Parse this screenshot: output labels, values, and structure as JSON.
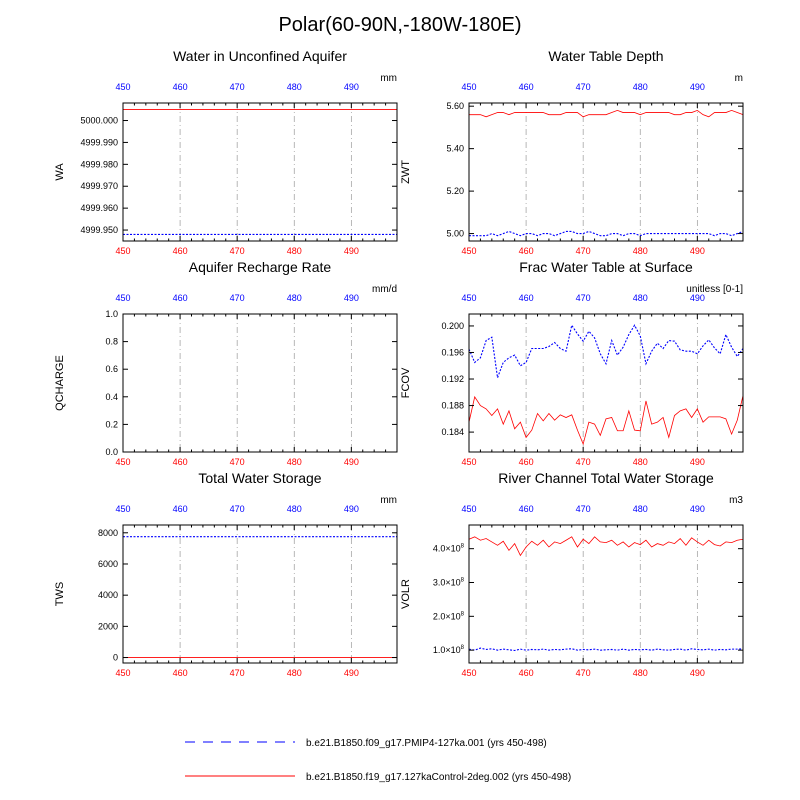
{
  "figure_title": "Polar(60-90N,-180W-180E)",
  "colors": {
    "series1": "#0000ff",
    "series2": "#ff0000",
    "top_axis": "#0000ff",
    "bottom_axis": "#ff0000",
    "grid": "#999999"
  },
  "legend": [
    {
      "name": "b.e21.B1850.f09_g17.PMIP4-127ka.001 (yrs 450-498)",
      "style": "dashed",
      "color": "#0000ff"
    },
    {
      "name": "b.e21.B1850.f19_g17.127kaControl-2deg.002 (yrs 450-498)",
      "style": "solid",
      "color": "#ff0000"
    }
  ],
  "chart_data": [
    {
      "type": "line",
      "title": "Water in Unconfined Aquifer",
      "ylabel": "WA",
      "units": "mm",
      "xlim": [
        450,
        498
      ],
      "ylim": [
        4999.945,
        5000.008
      ],
      "xticks": [
        450,
        460,
        470,
        480,
        490
      ],
      "yticks": [
        4999.95,
        4999.96,
        4999.97,
        4999.98,
        4999.99,
        5000.0
      ],
      "ytick_labels": [
        "4999.950",
        "4999.960",
        "4999.970",
        "4999.980",
        "4999.990",
        "5000.000"
      ],
      "series": [
        {
          "name": "b.e21.B1850.f09_g17.PMIP4-127ka.001 (yrs 450-498)",
          "style": "dashed",
          "color": "#0000ff",
          "values": [
            4999.948,
            4999.948,
            4999.948,
            4999.948,
            4999.948,
            4999.948,
            4999.948,
            4999.948,
            4999.948,
            4999.948,
            4999.948,
            4999.948,
            4999.948,
            4999.948,
            4999.948,
            4999.948,
            4999.948,
            4999.948,
            4999.948,
            4999.948,
            4999.948,
            4999.948,
            4999.948,
            4999.948,
            4999.948,
            4999.948,
            4999.948,
            4999.948,
            4999.948,
            4999.948,
            4999.948,
            4999.948,
            4999.948,
            4999.948,
            4999.948,
            4999.948,
            4999.948,
            4999.948,
            4999.948,
            4999.948,
            4999.948,
            4999.948,
            4999.948,
            4999.948,
            4999.948,
            4999.948,
            4999.948,
            4999.948,
            4999.948
          ]
        },
        {
          "name": "b.e21.B1850.f19_g17.127kaControl-2deg.002 (yrs 450-498)",
          "style": "solid",
          "color": "#ff0000",
          "values": [
            5000.005,
            5000.005,
            5000.005,
            5000.005,
            5000.005,
            5000.005,
            5000.005,
            5000.005,
            5000.005,
            5000.005,
            5000.005,
            5000.005,
            5000.005,
            5000.005,
            5000.005,
            5000.005,
            5000.005,
            5000.005,
            5000.005,
            5000.005,
            5000.005,
            5000.005,
            5000.005,
            5000.005,
            5000.005,
            5000.005,
            5000.005,
            5000.005,
            5000.005,
            5000.005,
            5000.005,
            5000.005,
            5000.005,
            5000.005,
            5000.005,
            5000.005,
            5000.005,
            5000.005,
            5000.005,
            5000.005,
            5000.005,
            5000.005,
            5000.005,
            5000.005,
            5000.005,
            5000.005,
            5000.005,
            5000.005,
            5000.005
          ]
        }
      ]
    },
    {
      "type": "line",
      "title": "Water Table Depth",
      "ylabel": "ZWT",
      "units": "m",
      "xlim": [
        450,
        498
      ],
      "ylim": [
        4.965,
        5.615
      ],
      "xticks": [
        450,
        460,
        470,
        480,
        490
      ],
      "yticks": [
        5.0,
        5.2,
        5.4,
        5.6
      ],
      "ytick_labels": [
        "5.00",
        "5.20",
        "5.40",
        "5.60"
      ],
      "series": [
        {
          "name": "b.e21.B1850.f09_g17.PMIP4-127ka.001 (yrs 450-498)",
          "style": "dashed",
          "color": "#0000ff",
          "values": [
            4.99,
            4.99,
            4.99,
            4.99,
            5.0,
            4.99,
            5.0,
            5.01,
            5.0,
            4.99,
            5.0,
            5.0,
            4.99,
            5.0,
            5.0,
            4.99,
            5.0,
            5.01,
            5.01,
            5.0,
            5.0,
            5.01,
            5.0,
            4.99,
            4.99,
            5.0,
            5.0,
            4.99,
            5.0,
            5.0,
            4.99,
            5.0,
            5.0,
            5.0,
            5.0,
            5.0,
            5.0,
            5.0,
            5.0,
            5.0,
            5.0,
            5.0,
            5.0,
            4.99,
            5.0,
            5.0,
            4.99,
            5.0,
            5.01
          ]
        },
        {
          "name": "b.e21.B1850.f19_g17.127kaControl-2deg.002 (yrs 450-498)",
          "style": "solid",
          "color": "#ff0000",
          "values": [
            5.56,
            5.56,
            5.56,
            5.55,
            5.56,
            5.57,
            5.57,
            5.56,
            5.57,
            5.57,
            5.57,
            5.57,
            5.57,
            5.57,
            5.56,
            5.56,
            5.56,
            5.57,
            5.57,
            5.57,
            5.55,
            5.56,
            5.56,
            5.56,
            5.56,
            5.57,
            5.58,
            5.57,
            5.57,
            5.57,
            5.56,
            5.57,
            5.57,
            5.57,
            5.57,
            5.57,
            5.56,
            5.56,
            5.57,
            5.57,
            5.58,
            5.56,
            5.55,
            5.57,
            5.57,
            5.57,
            5.58,
            5.57,
            5.56
          ]
        }
      ]
    },
    {
      "type": "line",
      "title": "Aquifer Recharge Rate",
      "ylabel": "QCHARGE",
      "units": "mm/d",
      "xlim": [
        450,
        498
      ],
      "ylim": [
        0,
        1
      ],
      "xticks": [
        450,
        460,
        470,
        480,
        490
      ],
      "yticks": [
        0,
        0.2,
        0.4,
        0.6,
        0.8,
        1.0
      ],
      "ytick_labels": [
        "0.0",
        "0.2",
        "0.4",
        "0.6",
        "0.8",
        "1.0"
      ],
      "series": [
        {
          "name": "b.e21.B1850.f09_g17.PMIP4-127ka.001 (yrs 450-498)",
          "style": "dashed",
          "color": "#0000ff",
          "values": [
            0,
            0,
            0,
            0,
            0,
            0,
            0,
            0,
            0,
            0,
            0,
            0,
            0,
            0,
            0,
            0,
            0,
            0,
            0,
            0,
            0,
            0,
            0,
            0,
            0,
            0,
            0,
            0,
            0,
            0,
            0,
            0,
            0,
            0,
            0,
            0,
            0,
            0,
            0,
            0,
            0,
            0,
            0,
            0,
            0,
            0,
            0,
            0,
            0
          ]
        },
        {
          "name": "b.e21.B1850.f19_g17.127kaControl-2deg.002 (yrs 450-498)",
          "style": "solid",
          "color": "#ff0000",
          "values": [
            0,
            0,
            0,
            0,
            0,
            0,
            0,
            0,
            0,
            0,
            0,
            0,
            0,
            0,
            0,
            0,
            0,
            0,
            0,
            0,
            0,
            0,
            0,
            0,
            0,
            0,
            0,
            0,
            0,
            0,
            0,
            0,
            0,
            0,
            0,
            0,
            0,
            0,
            0,
            0,
            0,
            0,
            0,
            0,
            0,
            0,
            0,
            0,
            0
          ]
        }
      ]
    },
    {
      "type": "line",
      "title": "Frac Water Table at Surface",
      "ylabel": "FCOV",
      "units": "unitless [0-1]",
      "xlim": [
        450,
        498
      ],
      "ylim": [
        0.181,
        0.2018
      ],
      "xticks": [
        450,
        460,
        470,
        480,
        490
      ],
      "yticks": [
        0.184,
        0.188,
        0.192,
        0.196,
        0.2
      ],
      "ytick_labels": [
        "0.184",
        "0.188",
        "0.192",
        "0.196",
        "0.200"
      ],
      "series": [
        {
          "name": "b.e21.B1850.f09_g17.PMIP4-127ka.001 (yrs 450-498)",
          "style": "dashed",
          "color": "#0000ff",
          "values": [
            0.1965,
            0.1945,
            0.1952,
            0.1978,
            0.1983,
            0.1922,
            0.1945,
            0.1952,
            0.1956,
            0.194,
            0.1945,
            0.1966,
            0.1966,
            0.1966,
            0.1969,
            0.1975,
            0.1966,
            0.1962,
            0.2001,
            0.1988,
            0.1977,
            0.1992,
            0.1982,
            0.1958,
            0.1943,
            0.1978,
            0.1956,
            0.1968,
            0.1987,
            0.2001,
            0.1985,
            0.1943,
            0.1962,
            0.1974,
            0.1966,
            0.1978,
            0.1977,
            0.1964,
            0.1962,
            0.1962,
            0.1958,
            0.197,
            0.1979,
            0.1967,
            0.1958,
            0.1987,
            0.1968,
            0.1954,
            0.1966
          ]
        },
        {
          "name": "b.e21.B1850.f19_g17.127kaControl-2deg.002 (yrs 450-498)",
          "style": "solid",
          "color": "#ff0000",
          "values": [
            0.1855,
            0.1893,
            0.188,
            0.1875,
            0.1865,
            0.1875,
            0.1852,
            0.1872,
            0.1845,
            0.1855,
            0.1832,
            0.1843,
            0.1868,
            0.1857,
            0.1868,
            0.1858,
            0.1866,
            0.1862,
            0.1866,
            0.1843,
            0.1822,
            0.1855,
            0.1852,
            0.1835,
            0.186,
            0.1862,
            0.1842,
            0.1842,
            0.1872,
            0.1843,
            0.1842,
            0.1887,
            0.1852,
            0.1855,
            0.1862,
            0.1832,
            0.1865,
            0.1872,
            0.1875,
            0.1862,
            0.1875,
            0.1855,
            0.1863,
            0.1863,
            0.1863,
            0.186,
            0.1837,
            0.1858,
            0.1895
          ]
        }
      ]
    },
    {
      "type": "line",
      "title": "Total Water Storage",
      "ylabel": "TWS",
      "units": "mm",
      "xlim": [
        450,
        498
      ],
      "ylim": [
        -350,
        8500
      ],
      "xticks": [
        450,
        460,
        470,
        480,
        490
      ],
      "yticks": [
        0,
        2000,
        4000,
        6000,
        8000
      ],
      "ytick_labels": [
        "0",
        "2000",
        "4000",
        "6000",
        "8000"
      ],
      "series": [
        {
          "name": "b.e21.B1850.f09_g17.PMIP4-127ka.001 (yrs 450-498)",
          "style": "dashed",
          "color": "#0000ff",
          "values": [
            7750,
            7750,
            7750,
            7750,
            7750,
            7750,
            7750,
            7750,
            7750,
            7750,
            7750,
            7750,
            7750,
            7750,
            7750,
            7750,
            7750,
            7750,
            7750,
            7750,
            7750,
            7750,
            7750,
            7750,
            7750,
            7750,
            7750,
            7750,
            7750,
            7750,
            7750,
            7750,
            7750,
            7750,
            7750,
            7750,
            7750,
            7750,
            7750,
            7750,
            7750,
            7750,
            7750,
            7750,
            7750,
            7750,
            7750,
            7750,
            7750
          ]
        },
        {
          "name": "b.e21.B1850.f19_g17.127kaControl-2deg.002 (yrs 450-498)",
          "style": "solid",
          "color": "#ff0000",
          "values": [
            0,
            0,
            0,
            0,
            0,
            0,
            0,
            0,
            0,
            0,
            0,
            0,
            0,
            0,
            0,
            0,
            0,
            0,
            0,
            0,
            0,
            0,
            0,
            0,
            0,
            0,
            0,
            0,
            0,
            0,
            0,
            0,
            0,
            0,
            0,
            0,
            0,
            0,
            0,
            0,
            0,
            0,
            0,
            0,
            0,
            0,
            0,
            0,
            0
          ]
        }
      ]
    },
    {
      "type": "line",
      "title": "River Channel Total Water Storage",
      "ylabel": "VOLR",
      "units": "m3",
      "xlim": [
        450,
        498
      ],
      "ylim": [
        62000000.0,
        470000000.0
      ],
      "xticks": [
        450,
        460,
        470,
        480,
        490
      ],
      "yticks": [
        100000000.0,
        200000000.0,
        300000000.0,
        400000000.0
      ],
      "ytick_labels": [
        {
          "mantissa": "1.0",
          "exp": "8"
        },
        {
          "mantissa": "2.0",
          "exp": "8"
        },
        {
          "mantissa": "3.0",
          "exp": "8"
        },
        {
          "mantissa": "4.0",
          "exp": "8"
        }
      ],
      "series": [
        {
          "name": "b.e21.B1850.f09_g17.PMIP4-127ka.001 (yrs 450-498)",
          "style": "dashed",
          "color": "#0000ff",
          "values": [
            103000000.0,
            100000000.0,
            106000000.0,
            102000000.0,
            104000000.0,
            100000000.0,
            103000000.0,
            101000000.0,
            99000000.0,
            103000000.0,
            100000000.0,
            102000000.0,
            101000000.0,
            103000000.0,
            100000000.0,
            102000000.0,
            101000000.0,
            103000000.0,
            104000000.0,
            100000000.0,
            102000000.0,
            101000000.0,
            103000000.0,
            100000000.0,
            101000000.0,
            102000000.0,
            100000000.0,
            103000000.0,
            100000000.0,
            102000000.0,
            101000000.0,
            102000000.0,
            100000000.0,
            103000000.0,
            101000000.0,
            100000000.0,
            102000000.0,
            103000000.0,
            100000000.0,
            104000000.0,
            102000000.0,
            101000000.0,
            103000000.0,
            100000000.0,
            102000000.0,
            101000000.0,
            103000000.0,
            103000000.0,
            104000000.0
          ]
        },
        {
          "name": "b.e21.B1850.f19_g17.127kaControl-2deg.002 (yrs 450-498)",
          "style": "solid",
          "color": "#ff0000",
          "values": [
            428000000.0,
            435000000.0,
            425000000.0,
            430000000.0,
            420000000.0,
            410000000.0,
            422000000.0,
            395000000.0,
            415000000.0,
            380000000.0,
            405000000.0,
            422000000.0,
            410000000.0,
            425000000.0,
            405000000.0,
            420000000.0,
            415000000.0,
            425000000.0,
            435000000.0,
            405000000.0,
            428000000.0,
            415000000.0,
            435000000.0,
            420000000.0,
            418000000.0,
            425000000.0,
            410000000.0,
            420000000.0,
            405000000.0,
            418000000.0,
            412000000.0,
            425000000.0,
            405000000.0,
            415000000.0,
            410000000.0,
            420000000.0,
            415000000.0,
            430000000.0,
            410000000.0,
            432000000.0,
            420000000.0,
            410000000.0,
            425000000.0,
            412000000.0,
            408000000.0,
            420000000.0,
            418000000.0,
            425000000.0,
            428000000.0
          ]
        }
      ]
    }
  ]
}
